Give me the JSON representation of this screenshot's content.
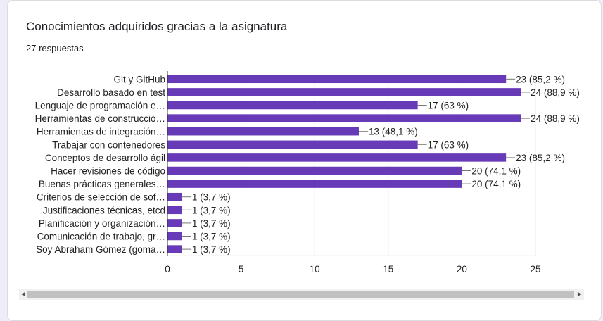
{
  "card": {
    "title": "Conocimientos adquiridos gracias a la asignatura",
    "response_count": "27 respuestas"
  },
  "colors": {
    "bar": "#673ab7",
    "axis": "#333333",
    "grid": "#e8e8ee",
    "text": "#222222"
  },
  "chart_data": {
    "type": "bar",
    "orientation": "horizontal",
    "title": "",
    "xlabel": "",
    "ylabel": "",
    "xlim": [
      0,
      25
    ],
    "ticks": [
      0,
      5,
      10,
      15,
      20,
      25
    ],
    "grid": true,
    "categories": [
      "Git y GitHub",
      "Desarrollo basado en test",
      "Lenguaje de programación e…",
      "Herramientas de construcció…",
      "Herramientas de integración…",
      "Trabajar con contenedores",
      "Conceptos de desarrollo ágil",
      "Hacer revisiones de código",
      "Buenas prácticas generales…",
      "Criterios de selección de sof…",
      "Justificaciones técnicas, etcd",
      "Planificación y organización…",
      "Comunicación de trabajo, gr…",
      "Soy Abraham Gómez (goma…"
    ],
    "values": [
      23,
      24,
      17,
      24,
      13,
      17,
      23,
      20,
      20,
      1,
      1,
      1,
      1,
      1
    ],
    "data_labels": [
      "23 (85,2 %)",
      "24 (88,9 %)",
      "17 (63 %)",
      "24 (88,9 %)",
      "13 (48,1 %)",
      "17 (63 %)",
      "23 (85,2 %)",
      "20 (74,1 %)",
      "20 (74,1 %)",
      "1 (3,7 %)",
      "1 (3,7 %)",
      "1 (3,7 %)",
      "1 (3,7 %)",
      "1 (3,7 %)"
    ]
  },
  "scrollbar": {
    "left_arrow": "◀",
    "right_arrow": "▶"
  }
}
